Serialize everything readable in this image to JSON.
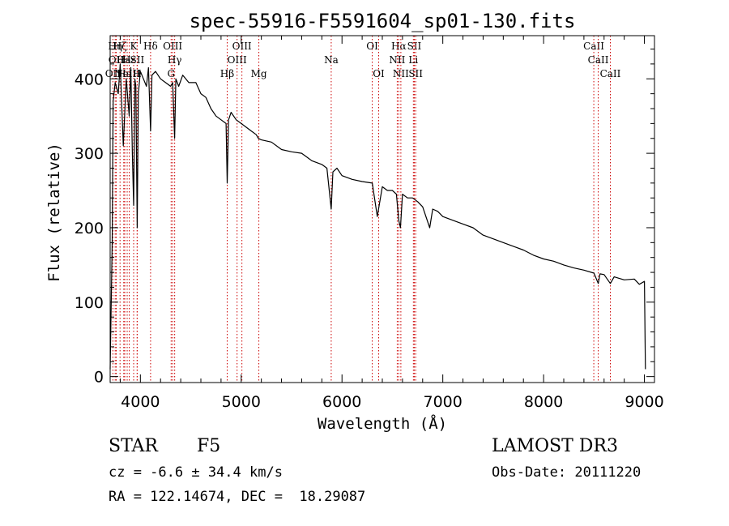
{
  "chart_data": {
    "type": "line",
    "title": "spec-55916-F5591604_sp01-130.fits",
    "xlabel": "Wavelength (Å)",
    "ylabel": "Flux (relative)",
    "xlim": [
      3700,
      9100
    ],
    "ylim": [
      -8,
      458
    ],
    "x_ticks": [
      4000,
      5000,
      6000,
      7000,
      8000,
      9000
    ],
    "y_ticks": [
      0,
      100,
      200,
      300,
      400
    ],
    "series": [
      {
        "name": "flux",
        "x": [
          3700,
          3720,
          3730,
          3750,
          3780,
          3800,
          3830,
          3860,
          3889,
          3905,
          3920,
          3933,
          3945,
          3955,
          3968,
          3980,
          4000,
          4030,
          4060,
          4080,
          4101,
          4115,
          4150,
          4200,
          4250,
          4300,
          4320,
          4340,
          4352,
          4380,
          4420,
          4480,
          4550,
          4600,
          4650,
          4700,
          4750,
          4800,
          4850,
          4861,
          4875,
          4900,
          4950,
          5000,
          5050,
          5100,
          5150,
          5170,
          5200,
          5300,
          5400,
          5500,
          5600,
          5700,
          5800,
          5850,
          5893,
          5910,
          5950,
          6000,
          6100,
          6200,
          6300,
          6350,
          6400,
          6450,
          6500,
          6540,
          6563,
          6580,
          6600,
          6650,
          6700,
          6750,
          6800,
          6870,
          6900,
          6950,
          7000,
          7100,
          7200,
          7300,
          7400,
          7500,
          7600,
          7700,
          7800,
          7900,
          8000,
          8100,
          8200,
          8300,
          8400,
          8500,
          8542,
          8560,
          8600,
          8662,
          8700,
          8800,
          8900,
          8950,
          9000,
          9010
        ],
        "values": [
          10,
          180,
          370,
          395,
          380,
          420,
          310,
          400,
          350,
          415,
          300,
          230,
          400,
          390,
          200,
          380,
          410,
          400,
          390,
          415,
          330,
          405,
          410,
          400,
          395,
          390,
          395,
          320,
          400,
          390,
          405,
          395,
          395,
          380,
          375,
          360,
          350,
          345,
          340,
          260,
          345,
          355,
          345,
          340,
          335,
          330,
          325,
          320,
          318,
          315,
          305,
          302,
          300,
          290,
          285,
          280,
          225,
          275,
          280,
          270,
          265,
          262,
          260,
          215,
          255,
          250,
          250,
          245,
          210,
          200,
          245,
          240,
          240,
          235,
          228,
          200,
          225,
          222,
          215,
          210,
          205,
          200,
          190,
          185,
          180,
          175,
          170,
          163,
          158,
          155,
          150,
          146,
          143,
          139,
          125,
          138,
          137,
          125,
          134,
          130,
          131,
          124,
          128,
          10
        ]
      }
    ],
    "line_markers": [
      {
        "label": "OII",
        "x": 3727,
        "row": 3
      },
      {
        "label": "Hη",
        "x": 3750,
        "row": 1
      },
      {
        "label": "OII",
        "x": 3760,
        "row": 2
      },
      {
        "label": "Hζ",
        "x": 3798,
        "row": 1
      },
      {
        "label": "Ha",
        "x": 3835,
        "row": 2
      },
      {
        "label": "Ha",
        "x": 3845,
        "row": 3
      },
      {
        "label": "NeIII",
        "x": 3869,
        "row": 3
      },
      {
        "label": "Hε",
        "x": 3889,
        "row": 2
      },
      {
        "label": "K",
        "x": 3933,
        "row": 1
      },
      {
        "label": "SII",
        "x": 3968,
        "row": 2
      },
      {
        "label": "H",
        "x": 3968,
        "row": 3
      },
      {
        "label": "Hδ",
        "x": 4101,
        "row": 1
      },
      {
        "label": "OIII",
        "x": 4320,
        "row": 1
      },
      {
        "label": "Hγ",
        "x": 4340,
        "row": 2
      },
      {
        "label": "G",
        "x": 4305,
        "row": 3
      },
      {
        "label": "Hβ",
        "x": 4861,
        "row": 3
      },
      {
        "label": "OIII",
        "x": 4959,
        "row": 2
      },
      {
        "label": "OIII",
        "x": 5007,
        "row": 1
      },
      {
        "label": "Mg",
        "x": 5175,
        "row": 3
      },
      {
        "label": "Na",
        "x": 5893,
        "row": 2
      },
      {
        "label": "OI",
        "x": 6300,
        "row": 1
      },
      {
        "label": "OI",
        "x": 6364,
        "row": 3
      },
      {
        "label": "Hα",
        "x": 6563,
        "row": 1
      },
      {
        "label": "NII",
        "x": 6548,
        "row": 2
      },
      {
        "label": "NII",
        "x": 6584,
        "row": 3
      },
      {
        "label": "SII",
        "x": 6717,
        "row": 1
      },
      {
        "label": "Li",
        "x": 6708,
        "row": 2
      },
      {
        "label": "SII",
        "x": 6731,
        "row": 3
      },
      {
        "label": "CaII",
        "x": 8498,
        "row": 1
      },
      {
        "label": "CaII",
        "x": 8542,
        "row": 2
      },
      {
        "label": "CaII",
        "x": 8662,
        "row": 3
      }
    ]
  },
  "info": {
    "object_class": "STAR",
    "subclass": "F5",
    "survey": "LAMOST DR3",
    "redshift": "cz = -6.6 ± 34.4 km/s",
    "obs_date": "Obs-Date: 20111220",
    "coordinates": "RA = 122.14674, DEC =  18.29087"
  }
}
